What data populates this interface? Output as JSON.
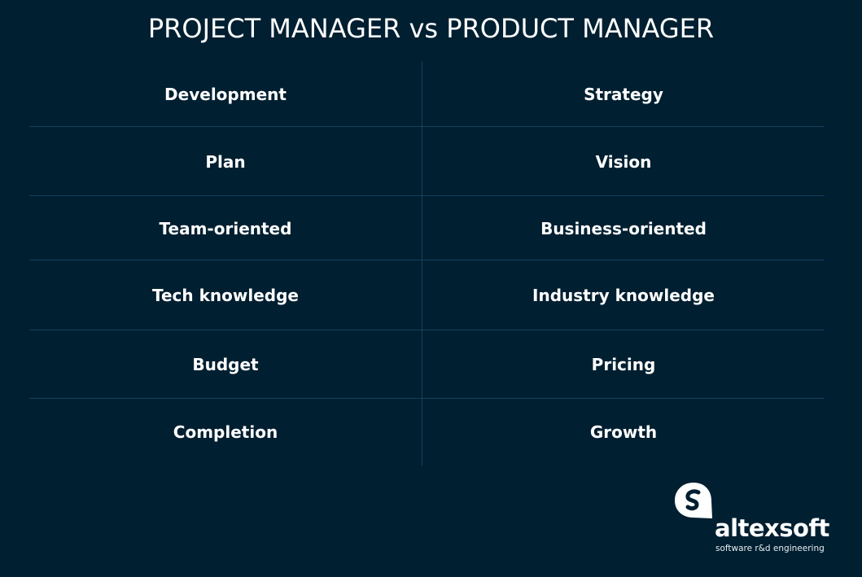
{
  "title": "PROJECT MANAGER vs PRODUCT MANAGER",
  "columns": [
    "PROJECT MANAGER",
    "PRODUCT MANAGER"
  ],
  "rows": [
    {
      "left": "Development",
      "right": "Strategy"
    },
    {
      "left": "Plan",
      "right": "Vision"
    },
    {
      "left": "Team-oriented",
      "right": "Business-oriented"
    },
    {
      "left": "Tech knowledge",
      "right": "Industry knowledge"
    },
    {
      "left": "Budget",
      "right": "Pricing"
    },
    {
      "left": "Completion",
      "right": "Growth"
    }
  ],
  "logo": {
    "name": "altexsoft",
    "tagline": "software r&d engineering"
  },
  "colors": {
    "background": "#001f31",
    "divider": "#15405f",
    "text": "#ffffff"
  }
}
